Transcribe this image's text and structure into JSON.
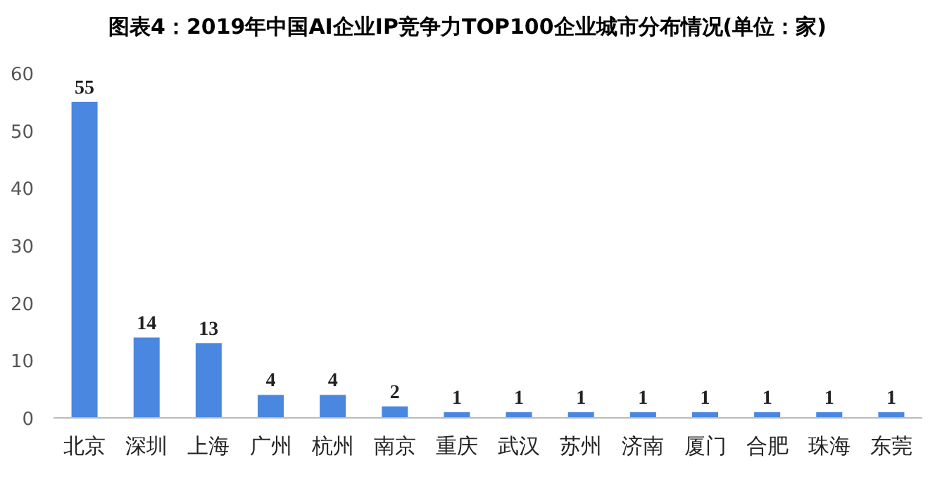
{
  "chart_data": {
    "type": "bar",
    "title": "图表4：2019年中国AI企业IP竞争力TOP100企业城市分布情况(单位：家)",
    "categories": [
      "北京",
      "深圳",
      "上海",
      "广州",
      "杭州",
      "南京",
      "重庆",
      "武汉",
      "苏州",
      "济南",
      "厦门",
      "合肥",
      "珠海",
      "东莞"
    ],
    "values": [
      55,
      14,
      13,
      4,
      4,
      2,
      1,
      1,
      1,
      1,
      1,
      1,
      1,
      1
    ],
    "color": "#4a87e0",
    "ylim": [
      0,
      60
    ],
    "yticks": [
      0,
      10,
      20,
      30,
      40,
      50,
      60
    ],
    "data_labels": true
  }
}
